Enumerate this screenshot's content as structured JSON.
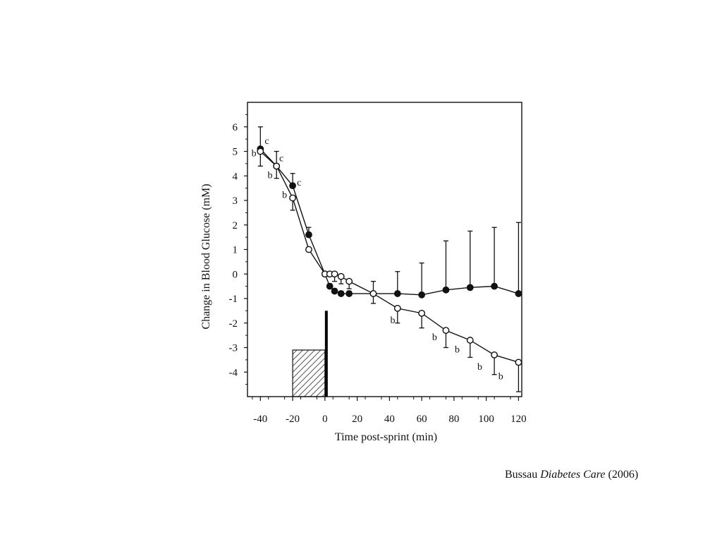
{
  "chart_data": {
    "type": "line",
    "xlabel": "Time post-sprint (min)",
    "ylabel": "Change in Blood Glucose (mM)",
    "xlim": [
      -48,
      122
    ],
    "ylim": [
      -5,
      7
    ],
    "x_ticks": [
      -40,
      -20,
      0,
      20,
      40,
      60,
      80,
      100,
      120
    ],
    "y_ticks": [
      6,
      5,
      4,
      3,
      2,
      1,
      0,
      -1,
      -2,
      -3,
      -4
    ],
    "grid": false,
    "legend": "none",
    "series": [
      {
        "marker": "filled-circle",
        "x": [
          -40,
          -30,
          -20,
          -10,
          0,
          3,
          6,
          10,
          15,
          30,
          45,
          60,
          75,
          90,
          105,
          120
        ],
        "y": [
          5.1,
          4.4,
          3.6,
          1.6,
          0.0,
          -0.5,
          -0.7,
          -0.8,
          -0.8,
          -0.8,
          -0.8,
          -0.85,
          -0.65,
          -0.55,
          -0.5,
          -0.8
        ],
        "err_up": [
          0.9,
          0.6,
          0.5,
          0.3,
          0.0,
          0.1,
          0.1,
          0.1,
          0.1,
          0.0,
          0.9,
          1.3,
          2.0,
          2.3,
          2.4,
          2.9
        ],
        "err_down": [
          0.0,
          0.0,
          0.0,
          0.0,
          0.0,
          0.0,
          0.0,
          0.0,
          0.0,
          0.0,
          0.0,
          0.0,
          0.0,
          0.0,
          0.0,
          0.0
        ]
      },
      {
        "marker": "open-circle",
        "x": [
          -40,
          -30,
          -20,
          -10,
          0,
          3,
          6,
          10,
          15,
          30,
          45,
          60,
          75,
          90,
          105,
          120
        ],
        "y": [
          5.0,
          4.4,
          3.1,
          1.0,
          0.0,
          0.0,
          0.0,
          -0.1,
          -0.3,
          -0.8,
          -1.4,
          -1.6,
          -2.3,
          -2.7,
          -3.3,
          -3.6
        ],
        "err_up": [
          0.0,
          0.0,
          0.0,
          0.0,
          0.0,
          0.0,
          0.0,
          0.0,
          0.0,
          0.5,
          0.0,
          0.0,
          0.0,
          0.0,
          0.0,
          0.0
        ],
        "err_down": [
          0.6,
          0.5,
          0.5,
          0.0,
          0.0,
          0.0,
          0.3,
          0.3,
          0.3,
          0.4,
          0.6,
          0.6,
          0.7,
          0.7,
          0.8,
          1.2
        ]
      }
    ],
    "annotations": [
      {
        "text": "c",
        "x": -36,
        "y": 5.3
      },
      {
        "text": "b",
        "x": -44,
        "y": 4.8
      },
      {
        "text": "c",
        "x": -27,
        "y": 4.6
      },
      {
        "text": "b",
        "x": -34,
        "y": 3.9
      },
      {
        "text": "c",
        "x": -16,
        "y": 3.6
      },
      {
        "text": "b",
        "x": -25,
        "y": 3.1
      },
      {
        "text": "b",
        "x": 42,
        "y": -2.0
      },
      {
        "text": "b",
        "x": 68,
        "y": -2.7
      },
      {
        "text": "b",
        "x": 82,
        "y": -3.2
      },
      {
        "text": "b",
        "x": 96,
        "y": -3.9
      },
      {
        "text": "b",
        "x": 109,
        "y": -4.3
      }
    ],
    "hatched_box": {
      "x_start": -20,
      "x_end": 0,
      "y_top": -3.1,
      "y_bottom": -5
    },
    "vertical_bar": {
      "x": 0,
      "y_top": -1.5,
      "y_bottom": -5
    }
  },
  "caption": {
    "author": "Bussau",
    "journal": "Diabetes Care",
    "year": "(2006)"
  }
}
